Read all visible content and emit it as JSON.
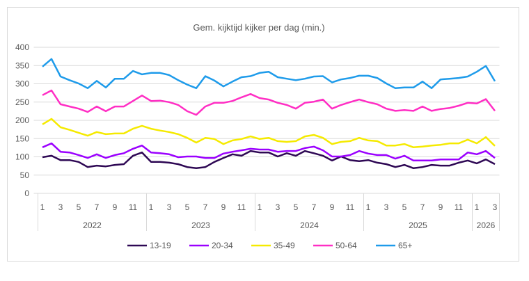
{
  "chart_data": {
    "type": "line",
    "title": "Gem. kijktijd kijker per dag (min.)",
    "xlabel": "",
    "ylabel": "",
    "ylim": [
      0,
      400
    ],
    "yticks": [
      0,
      50,
      100,
      150,
      200,
      250,
      300,
      350,
      400
    ],
    "grid": true,
    "legend_position": "bottom",
    "years": [
      {
        "label": "2022",
        "months": 12
      },
      {
        "label": "2023",
        "months": 12
      },
      {
        "label": "2024",
        "months": 12
      },
      {
        "label": "2025",
        "months": 12
      },
      {
        "label": "2026",
        "months": 3
      }
    ],
    "month_labels_shown": [
      "1",
      "3",
      "5",
      "7",
      "9",
      "11"
    ],
    "series": [
      {
        "name": "13-19",
        "color": "#2e0854",
        "values": [
          99,
          103,
          91,
          91,
          86,
          72,
          76,
          74,
          78,
          80,
          103,
          112,
          86,
          86,
          84,
          80,
          72,
          69,
          72,
          86,
          97,
          107,
          103,
          116,
          112,
          112,
          101,
          110,
          103,
          116,
          110,
          103,
          90,
          101,
          91,
          88,
          91,
          84,
          80,
          72,
          78,
          69,
          72,
          78,
          76,
          76,
          84,
          90,
          82,
          93,
          80
        ]
      },
      {
        "name": "20-34",
        "color": "#9b00ff",
        "values": [
          126,
          137,
          114,
          112,
          105,
          97,
          107,
          97,
          105,
          110,
          122,
          131,
          112,
          110,
          107,
          99,
          101,
          101,
          97,
          97,
          109,
          114,
          118,
          122,
          120,
          120,
          114,
          116,
          116,
          124,
          128,
          118,
          101,
          101,
          105,
          116,
          109,
          105,
          105,
          95,
          103,
          90,
          90,
          90,
          93,
          93,
          93,
          112,
          107,
          116,
          97
        ]
      },
      {
        "name": "35-49",
        "color": "#f5ea00",
        "values": [
          189,
          204,
          181,
          174,
          166,
          158,
          168,
          162,
          164,
          164,
          177,
          185,
          177,
          172,
          168,
          162,
          152,
          139,
          152,
          149,
          135,
          145,
          149,
          156,
          149,
          152,
          143,
          141,
          143,
          156,
          160,
          152,
          135,
          141,
          143,
          152,
          145,
          143,
          131,
          131,
          135,
          126,
          128,
          131,
          133,
          137,
          137,
          147,
          137,
          154,
          130
        ]
      },
      {
        "name": "50-64",
        "color": "#ff2ec4",
        "values": [
          269,
          282,
          244,
          238,
          232,
          223,
          238,
          225,
          238,
          238,
          253,
          268,
          253,
          254,
          250,
          242,
          225,
          215,
          238,
          248,
          248,
          253,
          263,
          272,
          261,
          257,
          248,
          242,
          232,
          248,
          251,
          257,
          232,
          242,
          250,
          257,
          250,
          244,
          232,
          226,
          228,
          226,
          238,
          226,
          231,
          234,
          240,
          248,
          246,
          258,
          226
        ]
      },
      {
        "name": "65+",
        "color": "#1e9bea",
        "values": [
          347,
          368,
          320,
          310,
          301,
          288,
          308,
          290,
          314,
          314,
          335,
          326,
          330,
          330,
          324,
          310,
          298,
          288,
          321,
          309,
          293,
          306,
          318,
          321,
          330,
          333,
          318,
          314,
          310,
          314,
          320,
          321,
          304,
          312,
          316,
          322,
          322,
          316,
          301,
          288,
          290,
          290,
          306,
          288,
          312,
          314,
          316,
          320,
          333,
          349,
          307
        ]
      }
    ]
  }
}
